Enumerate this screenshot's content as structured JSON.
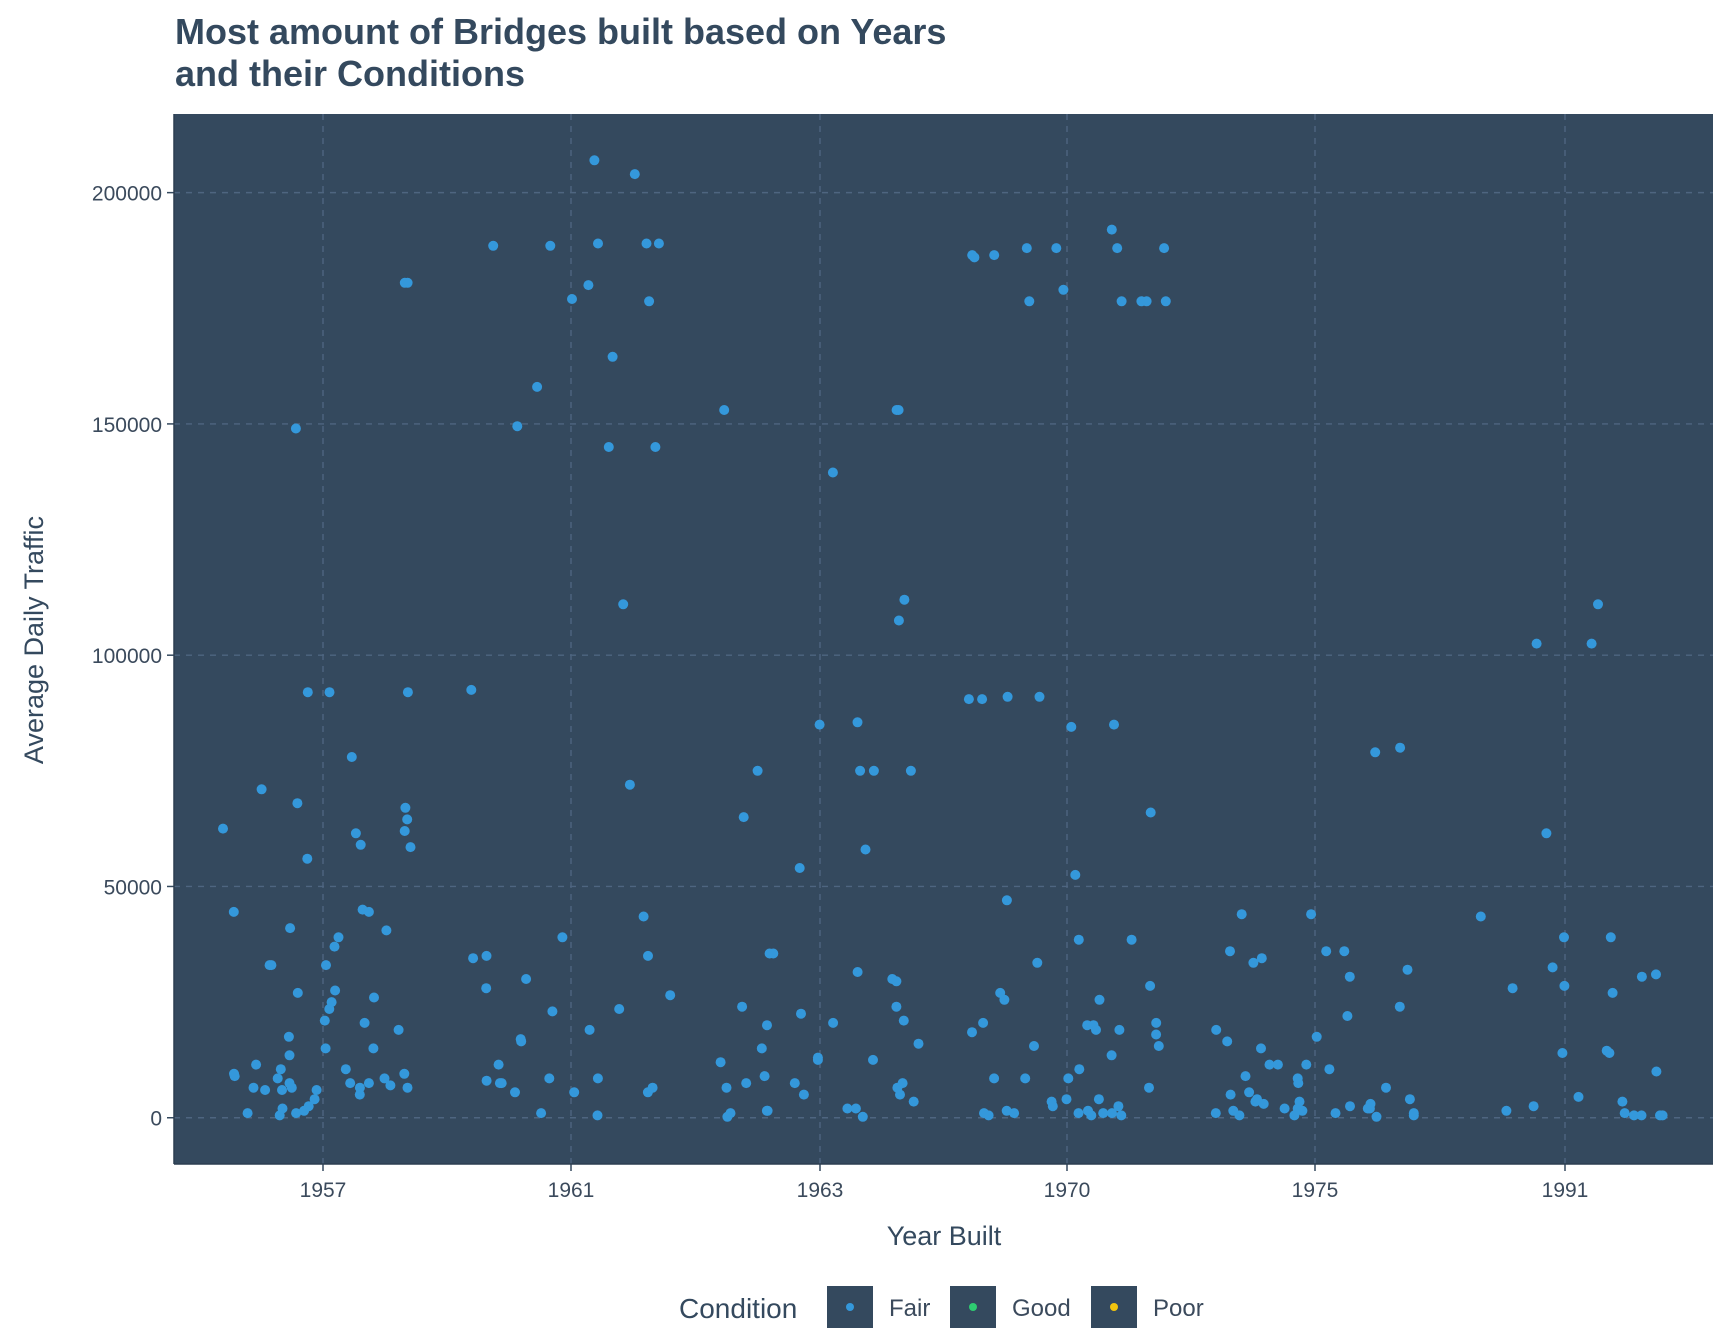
{
  "chart_data": {
    "type": "scatter",
    "title_lines": [
      "Most amount of Bridges built based on Years",
      "and their Conditions"
    ],
    "xlabel": "Year Built",
    "ylabel": "Average Daily Traffic",
    "x_axis_kind": "categorical (jittered points per year)",
    "categories": [
      "1957",
      "1961",
      "1963",
      "1970",
      "1975",
      "1991"
    ],
    "y_ticks": [
      0,
      50000,
      100000,
      150000,
      200000
    ],
    "y_tick_labels": [
      "0",
      "50000",
      "100000",
      "150000",
      "200000"
    ],
    "ylim": [
      -10000,
      217000
    ],
    "grid": true,
    "panel_background": "#34495e",
    "grid_color": "#4e6580",
    "legend": {
      "title": "Condition",
      "position": "bottom",
      "items": [
        {
          "label": "Fair",
          "color": "#3498db"
        },
        {
          "label": "Good",
          "color": "#2ecc71"
        },
        {
          "label": "Poor",
          "color": "#f1c40f"
        }
      ]
    },
    "series": [
      {
        "name": "Fair",
        "color": "#3498db",
        "points": [
          [
            "1957",
            62500
          ],
          [
            "1957",
            64500
          ],
          [
            "1957",
            10500
          ],
          [
            "1957",
            6000
          ],
          [
            "1957",
            7500
          ],
          [
            "1957",
            92000
          ],
          [
            "1957",
            17500
          ],
          [
            "1957",
            15000
          ],
          [
            "1957",
            26000
          ],
          [
            "1957",
            25000
          ],
          [
            "1957",
            6500
          ],
          [
            "1957",
            7500
          ],
          [
            "1957",
            40500
          ],
          [
            "1957",
            33000
          ],
          [
            "1957",
            27000
          ],
          [
            "1957",
            20500
          ],
          [
            "1957",
            45000
          ],
          [
            "1957",
            44500
          ],
          [
            "1957",
            5000
          ],
          [
            "1957",
            6000
          ],
          [
            "1957",
            6500
          ],
          [
            "1957",
            8500
          ],
          [
            "1957",
            1000
          ],
          [
            "1957",
            15000
          ],
          [
            "1957",
            180500
          ],
          [
            "1957",
            59000
          ],
          [
            "1957",
            78000
          ],
          [
            "1957",
            39000
          ],
          [
            "1957",
            67000
          ],
          [
            "1957",
            62000
          ],
          [
            "1957",
            68000
          ],
          [
            "1957",
            41000
          ],
          [
            "1957",
            7000
          ],
          [
            "1957",
            7500
          ],
          [
            "1957",
            6500
          ],
          [
            "1957",
            2000
          ],
          [
            "1957",
            2500
          ],
          [
            "1957",
            6000
          ],
          [
            "1957",
            58500
          ],
          [
            "1957",
            37000
          ],
          [
            "1957",
            44500
          ],
          [
            "1957",
            19000
          ],
          [
            "1957",
            9000
          ],
          [
            "1957",
            8500
          ],
          [
            "1957",
            27500
          ],
          [
            "1957",
            21000
          ],
          [
            "1957",
            56000
          ],
          [
            "1957",
            71000
          ],
          [
            "1957",
            180500
          ],
          [
            "1957",
            9500
          ],
          [
            "1957",
            1000
          ],
          [
            "1957",
            6500
          ],
          [
            "1957",
            61500
          ],
          [
            "1957",
            92000
          ],
          [
            "1957",
            33000
          ],
          [
            "1957",
            11500
          ],
          [
            "1957",
            1500
          ],
          [
            "1957",
            500
          ],
          [
            "1957",
            149000
          ],
          [
            "1957",
            92000
          ],
          [
            "1957",
            13500
          ],
          [
            "1957",
            23500
          ],
          [
            "1957",
            10500
          ],
          [
            "1957",
            33000
          ],
          [
            "1957",
            9500
          ],
          [
            "1957",
            4000
          ],
          [
            "1961",
            43500
          ],
          [
            "1961",
            189000
          ],
          [
            "1961",
            8500
          ],
          [
            "1961",
            5500
          ],
          [
            "1961",
            177000
          ],
          [
            "1961",
            145000
          ],
          [
            "1961",
            189000
          ],
          [
            "1961",
            188500
          ],
          [
            "1961",
            164500
          ],
          [
            "1961",
            16500
          ],
          [
            "1961",
            180000
          ],
          [
            "1961",
            1000
          ],
          [
            "1961",
            158000
          ],
          [
            "1961",
            8500
          ],
          [
            "1961",
            72000
          ],
          [
            "1961",
            189000
          ],
          [
            "1961",
            188500
          ],
          [
            "1961",
            204000
          ],
          [
            "1961",
            35000
          ],
          [
            "1961",
            23000
          ],
          [
            "1961",
            7500
          ],
          [
            "1961",
            8000
          ],
          [
            "1961",
            26500
          ],
          [
            "1961",
            5500
          ],
          [
            "1961",
            500
          ],
          [
            "1961",
            7500
          ],
          [
            "1961",
            39000
          ],
          [
            "1961",
            19000
          ],
          [
            "1961",
            11500
          ],
          [
            "1961",
            145000
          ],
          [
            "1961",
            5500
          ],
          [
            "1961",
            176500
          ],
          [
            "1961",
            35000
          ],
          [
            "1961",
            6500
          ],
          [
            "1961",
            111000
          ],
          [
            "1961",
            30000
          ],
          [
            "1961",
            34500
          ],
          [
            "1961",
            17000
          ],
          [
            "1961",
            28000
          ],
          [
            "1961",
            92500
          ],
          [
            "1961",
            207000
          ],
          [
            "1961",
            149500
          ],
          [
            "1961",
            23500
          ],
          [
            "1963",
            13000
          ],
          [
            "1963",
            85500
          ],
          [
            "1963",
            1500
          ],
          [
            "1963",
            29500
          ],
          [
            "1963",
            20000
          ],
          [
            "1963",
            7500
          ],
          [
            "1963",
            107500
          ],
          [
            "1963",
            65000
          ],
          [
            "1963",
            12500
          ],
          [
            "1963",
            12000
          ],
          [
            "1963",
            7500
          ],
          [
            "1963",
            2000
          ],
          [
            "1963",
            112000
          ],
          [
            "1963",
            153000
          ],
          [
            "1963",
            5000
          ],
          [
            "1963",
            75000
          ],
          [
            "1963",
            3500
          ],
          [
            "1963",
            20500
          ],
          [
            "1963",
            2000
          ],
          [
            "1963",
            35500
          ],
          [
            "1963",
            9000
          ],
          [
            "1963",
            15000
          ],
          [
            "1963",
            139500
          ],
          [
            "1963",
            1000
          ],
          [
            "1963",
            75000
          ],
          [
            "1963",
            75000
          ],
          [
            "1963",
            200
          ],
          [
            "1963",
            85000
          ],
          [
            "1963",
            6500
          ],
          [
            "1963",
            24000
          ],
          [
            "1963",
            21000
          ],
          [
            "1963",
            7500
          ],
          [
            "1963",
            31500
          ],
          [
            "1963",
            153000
          ],
          [
            "1963",
            200
          ],
          [
            "1963",
            153000
          ],
          [
            "1963",
            30000
          ],
          [
            "1963",
            16000
          ],
          [
            "1963",
            75000
          ],
          [
            "1963",
            12500
          ],
          [
            "1963",
            5000
          ],
          [
            "1963",
            35500
          ],
          [
            "1963",
            58000
          ],
          [
            "1963",
            24000
          ],
          [
            "1963",
            54000
          ],
          [
            "1963",
            1500
          ],
          [
            "1963",
            22500
          ],
          [
            "1963",
            6500
          ],
          [
            "1970",
            38500
          ],
          [
            "1970",
            33500
          ],
          [
            "1970",
            500
          ],
          [
            "1970",
            85000
          ],
          [
            "1970",
            15500
          ],
          [
            "1970",
            1000
          ],
          [
            "1970",
            3500
          ],
          [
            "1970",
            1500
          ],
          [
            "1970",
            176500
          ],
          [
            "1970",
            188000
          ],
          [
            "1970",
            176500
          ],
          [
            "1970",
            20000
          ],
          [
            "1970",
            176500
          ],
          [
            "1970",
            66000
          ],
          [
            "1970",
            47000
          ],
          [
            "1970",
            19000
          ],
          [
            "1970",
            8500
          ],
          [
            "1970",
            4000
          ],
          [
            "1970",
            1000
          ],
          [
            "1970",
            500
          ],
          [
            "1970",
            20500
          ],
          [
            "1970",
            179000
          ],
          [
            "1970",
            25500
          ],
          [
            "1970",
            188000
          ],
          [
            "1970",
            27000
          ],
          [
            "1970",
            25500
          ],
          [
            "1970",
            84500
          ],
          [
            "1970",
            10500
          ],
          [
            "1970",
            8500
          ],
          [
            "1970",
            2500
          ],
          [
            "1970",
            91000
          ],
          [
            "1970",
            188000
          ],
          [
            "1970",
            186500
          ],
          [
            "1970",
            188000
          ],
          [
            "1970",
            52500
          ],
          [
            "1970",
            91000
          ],
          [
            "1970",
            13500
          ],
          [
            "1970",
            8500
          ],
          [
            "1970",
            1000
          ],
          [
            "1970",
            4000
          ],
          [
            "1970",
            2500
          ],
          [
            "1970",
            90500
          ],
          [
            "1970",
            176500
          ],
          [
            "1970",
            38500
          ],
          [
            "1970",
            28500
          ],
          [
            "1970",
            6500
          ],
          [
            "1970",
            1000
          ],
          [
            "1970",
            15500
          ],
          [
            "1970",
            18500
          ],
          [
            "1970",
            19000
          ],
          [
            "1970",
            20000
          ],
          [
            "1970",
            192000
          ],
          [
            "1970",
            176500
          ],
          [
            "1970",
            186000
          ],
          [
            "1970",
            186500
          ],
          [
            "1970",
            20500
          ],
          [
            "1970",
            500
          ],
          [
            "1970",
            1000
          ],
          [
            "1970",
            90500
          ],
          [
            "1970",
            1500
          ],
          [
            "1970",
            18000
          ],
          [
            "1975",
            33500
          ],
          [
            "1975",
            44000
          ],
          [
            "1975",
            3500
          ],
          [
            "1975",
            2500
          ],
          [
            "1975",
            3000
          ],
          [
            "1975",
            11500
          ],
          [
            "1975",
            1000
          ],
          [
            "1975",
            3500
          ],
          [
            "1975",
            30500
          ],
          [
            "1975",
            2000
          ],
          [
            "1975",
            500
          ],
          [
            "1975",
            7500
          ],
          [
            "1975",
            16500
          ],
          [
            "1975",
            15000
          ],
          [
            "1975",
            200
          ],
          [
            "1975",
            4000
          ],
          [
            "1975",
            9000
          ],
          [
            "1975",
            80000
          ],
          [
            "1975",
            17500
          ],
          [
            "1975",
            500
          ],
          [
            "1975",
            4000
          ],
          [
            "1975",
            1000
          ],
          [
            "1975",
            5500
          ],
          [
            "1975",
            5000
          ],
          [
            "1975",
            11500
          ],
          [
            "1975",
            36000
          ],
          [
            "1975",
            36000
          ],
          [
            "1975",
            44000
          ],
          [
            "1975",
            500
          ],
          [
            "1975",
            36000
          ],
          [
            "1975",
            8500
          ],
          [
            "1975",
            11500
          ],
          [
            "1975",
            1000
          ],
          [
            "1975",
            19000
          ],
          [
            "1975",
            2000
          ],
          [
            "1975",
            1500
          ],
          [
            "1975",
            34500
          ],
          [
            "1975",
            24000
          ],
          [
            "1975",
            3000
          ],
          [
            "1975",
            2000
          ],
          [
            "1975",
            1500
          ],
          [
            "1975",
            6500
          ],
          [
            "1975",
            32000
          ],
          [
            "1975",
            79000
          ],
          [
            "1975",
            22000
          ],
          [
            "1975",
            10500
          ],
          [
            "1975",
            2000
          ],
          [
            "1991",
            61500
          ],
          [
            "1991",
            28500
          ],
          [
            "1991",
            39000
          ],
          [
            "1991",
            4500
          ],
          [
            "1991",
            14000
          ],
          [
            "1991",
            111000
          ],
          [
            "1991",
            102500
          ],
          [
            "1991",
            39000
          ],
          [
            "1991",
            30500
          ],
          [
            "1991",
            500
          ],
          [
            "1991",
            500
          ],
          [
            "1991",
            32500
          ],
          [
            "1991",
            14000
          ],
          [
            "1991",
            10000
          ],
          [
            "1991",
            500
          ],
          [
            "1991",
            102500
          ],
          [
            "1991",
            43500
          ],
          [
            "1991",
            2500
          ],
          [
            "1991",
            500
          ],
          [
            "1991",
            14500
          ],
          [
            "1991",
            27000
          ],
          [
            "1991",
            31000
          ],
          [
            "1991",
            3500
          ],
          [
            "1991",
            1500
          ],
          [
            "1991",
            28000
          ],
          [
            "1991",
            1000
          ]
        ]
      },
      {
        "name": "Good",
        "color": "#2ecc71",
        "points": []
      },
      {
        "name": "Poor",
        "color": "#f1c40f",
        "points": []
      }
    ]
  }
}
